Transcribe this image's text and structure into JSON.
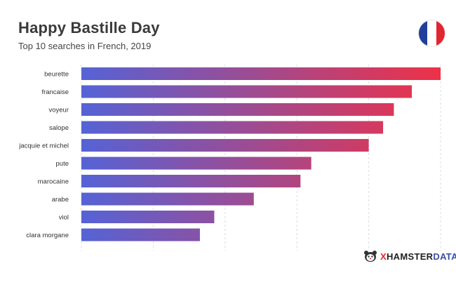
{
  "header": {
    "title": "Happy Bastille Day",
    "subtitle": "Top 10 searches in French, 2019"
  },
  "flag": {
    "colors": [
      "#1f3f9b",
      "#ffffff",
      "#e1262f"
    ],
    "icon": "france-flag-icon"
  },
  "brand": {
    "icon": "hamster-icon",
    "x": "X",
    "name": "HAMSTER",
    "data": "DATA"
  },
  "colors": {
    "bar_start": "#5563d6",
    "bar_end": "#ee3147",
    "grid": "#dddddd",
    "label": "#333333"
  },
  "chart_data": {
    "type": "bar",
    "orientation": "horizontal",
    "title": "Happy Bastille Day",
    "subtitle": "Top 10 searches in French, 2019",
    "categories": [
      "beurette",
      "francaise",
      "voyeur",
      "salope",
      "jacquie et michel",
      "pute",
      "marocaine",
      "arabe",
      "viol",
      "clara morgane"
    ],
    "values": [
      100,
      92,
      87,
      84,
      80,
      64,
      61,
      48,
      37,
      33
    ],
    "xlim": [
      0,
      100
    ],
    "grid": true,
    "legend": "none"
  }
}
